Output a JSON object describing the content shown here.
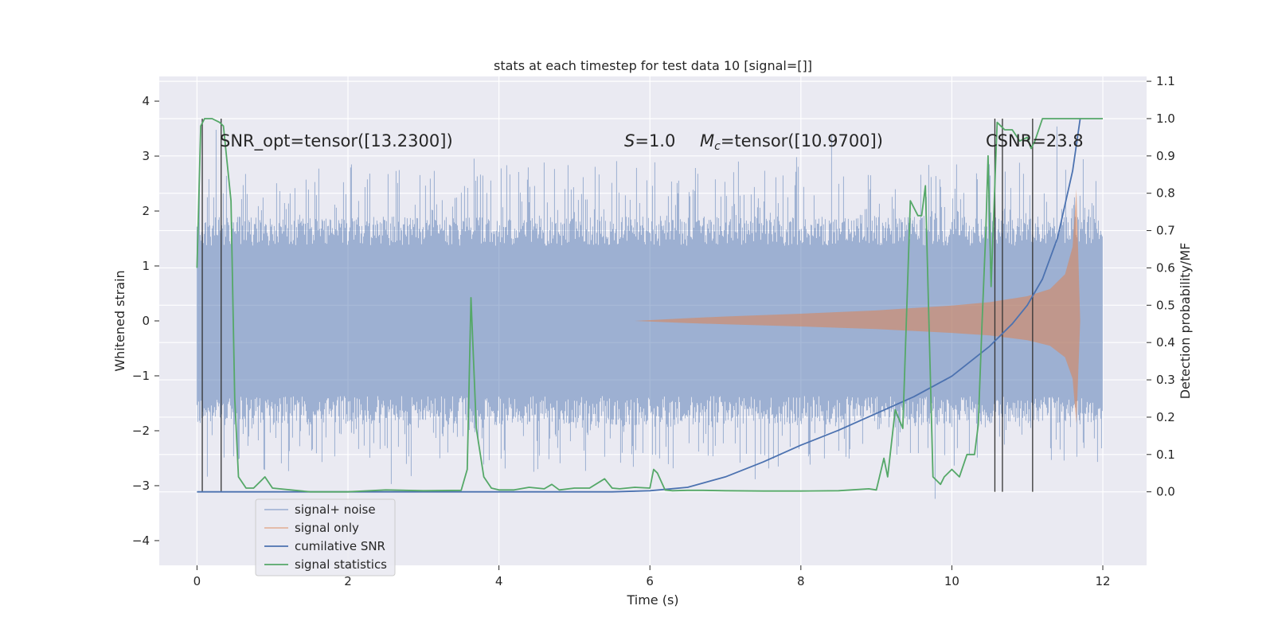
{
  "chart_data": {
    "type": "line",
    "title": "stats at each timestep for test data 10 [signal=[]]",
    "xlabel": "Time (s)",
    "ylabel": "Whitened strain",
    "ylabel_right": "Detection probability/MF",
    "xlim": [
      -0.5,
      12.58
    ],
    "ylim": [
      -4.45,
      4.45
    ],
    "ylim_right": [
      -0.197,
      1.113
    ],
    "x_ticks": [
      0,
      2,
      4,
      6,
      8,
      10,
      12
    ],
    "y_ticks": [
      -4,
      -3,
      -2,
      -1,
      0,
      1,
      2,
      3,
      4
    ],
    "y_ticks_right": [
      0.0,
      0.1,
      0.2,
      0.3,
      0.4,
      0.5,
      0.6,
      0.7,
      0.8,
      0.9,
      1.0,
      1.1
    ],
    "tick_labels": {
      "x": [
        "0",
        "2",
        "4",
        "6",
        "8",
        "10",
        "12"
      ],
      "y": [
        "−4",
        "−3",
        "−2",
        "−1",
        "0",
        "1",
        "2",
        "3",
        "4"
      ],
      "y_right": [
        "0.0",
        "0.1",
        "0.2",
        "0.3",
        "0.4",
        "0.5",
        "0.6",
        "0.7",
        "0.8",
        "0.9",
        "1.0",
        "1.1"
      ]
    },
    "grid": true,
    "legend_position": "lower-left",
    "annotations": {
      "snr_opt": "SNR_opt=tensor([13.2300])",
      "s_value": "=1.0",
      "s_symbol": "S",
      "mc_value": "=tensor([10.9700])",
      "mc_symbol": "M",
      "mc_subscript": "c",
      "csnr": "CSNR=23.8"
    },
    "series": [
      {
        "name": "signal+ noise",
        "color": "#4c72b0",
        "axis": "left",
        "kind": "noise band",
        "x_range": [
          0,
          12
        ],
        "core_amplitude": 1.9,
        "peak_amplitude": 4.1,
        "low_outliers_to": -4.05
      },
      {
        "name": "signal only",
        "color": "#dd8452",
        "axis": "left",
        "kind": "chirp envelope",
        "x": [
          5.8,
          6.5,
          7,
          8,
          9,
          10,
          10.5,
          11,
          11.3,
          11.5,
          11.6,
          11.65,
          11.7
        ],
        "envelope": [
          0.0,
          0.05,
          0.08,
          0.13,
          0.19,
          0.28,
          0.34,
          0.45,
          0.58,
          0.85,
          1.35,
          2.4,
          0.0
        ]
      },
      {
        "name": "cumilative SNR",
        "color": "#4c72b0",
        "axis": "right",
        "x": [
          0,
          5.5,
          6.0,
          6.5,
          7.0,
          7.5,
          8.0,
          8.5,
          9.0,
          9.5,
          10.0,
          10.5,
          10.8,
          11.0,
          11.2,
          11.4,
          11.6,
          11.7
        ],
        "values": [
          0.0,
          0.0,
          0.003,
          0.012,
          0.04,
          0.08,
          0.125,
          0.165,
          0.21,
          0.255,
          0.31,
          0.39,
          0.45,
          0.5,
          0.57,
          0.68,
          0.86,
          1.0
        ]
      },
      {
        "name": "signal statistics",
        "color": "#55a868",
        "axis": "right",
        "x": [
          0.0,
          0.05,
          0.1,
          0.2,
          0.3,
          0.35,
          0.45,
          0.5,
          0.55,
          0.65,
          0.75,
          0.85,
          0.9,
          1.0,
          1.5,
          2.0,
          2.5,
          3.0,
          3.5,
          3.58,
          3.63,
          3.7,
          3.8,
          3.9,
          4.0,
          4.2,
          4.4,
          4.6,
          4.7,
          4.8,
          5.0,
          5.2,
          5.4,
          5.5,
          5.6,
          5.8,
          6.0,
          6.05,
          6.1,
          6.2,
          6.3,
          6.5,
          6.7,
          7.0,
          7.5,
          8.0,
          8.5,
          8.9,
          9.0,
          9.1,
          9.15,
          9.25,
          9.35,
          9.45,
          9.55,
          9.6,
          9.65,
          9.75,
          9.85,
          9.9,
          10.0,
          10.1,
          10.2,
          10.25,
          10.3,
          10.35,
          10.4,
          10.45,
          10.48,
          10.52,
          10.6,
          10.65,
          10.7,
          10.8,
          10.9,
          11.0,
          11.05,
          11.1,
          11.2,
          11.3,
          11.5,
          12.0
        ],
        "values": [
          0.6,
          0.98,
          1.0,
          1.0,
          0.99,
          0.98,
          0.78,
          0.25,
          0.04,
          0.01,
          0.01,
          0.03,
          0.04,
          0.01,
          0.0,
          0.0,
          0.005,
          0.003,
          0.004,
          0.06,
          0.52,
          0.17,
          0.04,
          0.01,
          0.005,
          0.005,
          0.012,
          0.008,
          0.02,
          0.005,
          0.01,
          0.01,
          0.035,
          0.01,
          0.008,
          0.012,
          0.01,
          0.06,
          0.05,
          0.005,
          0.003,
          0.004,
          0.004,
          0.003,
          0.002,
          0.002,
          0.003,
          0.008,
          0.005,
          0.09,
          0.04,
          0.22,
          0.17,
          0.78,
          0.74,
          0.74,
          0.82,
          0.04,
          0.02,
          0.04,
          0.06,
          0.04,
          0.1,
          0.1,
          0.1,
          0.18,
          0.45,
          0.7,
          0.9,
          0.55,
          0.99,
          0.98,
          0.97,
          0.97,
          0.94,
          0.95,
          0.92,
          0.94,
          1.0,
          1.0,
          1.0,
          1.0
        ]
      }
    ],
    "vertical_markers_x": [
      0.07,
      0.32,
      10.57,
      10.67,
      11.07
    ]
  }
}
